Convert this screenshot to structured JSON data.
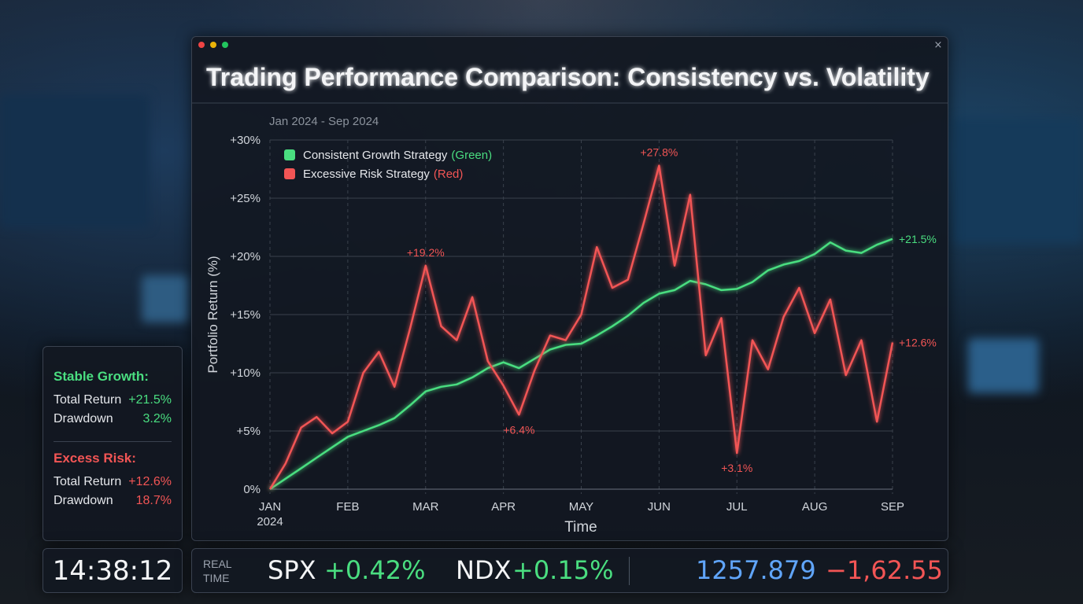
{
  "chart_data": {
    "type": "line",
    "title": "Trading Performance Comparison: Consistency vs. Volatility",
    "subtitle": "Jan 2024 - Sep 2024",
    "y_label": "Portfolio Return (%)",
    "x_label": "Time",
    "xlim": [
      0,
      8
    ],
    "xticks": [
      {
        "value": 0,
        "label": "JAN 2024"
      },
      {
        "value": 1,
        "label": "FEB"
      },
      {
        "value": 2,
        "label": "MAR"
      },
      {
        "value": 3,
        "label": "APR"
      },
      {
        "value": 4,
        "label": "MAY"
      },
      {
        "value": 5,
        "label": "JUN"
      },
      {
        "value": 6,
        "label": "JUL"
      },
      {
        "value": 7,
        "label": "AUG"
      },
      {
        "value": 8,
        "label": "SEP"
      }
    ],
    "ylim": [
      0,
      30
    ],
    "yticks": [
      {
        "value": 0,
        "label": "0%"
      },
      {
        "value": 5,
        "label": "+5%"
      },
      {
        "value": 10,
        "label": "+10%"
      },
      {
        "value": 15,
        "label": "+15%"
      },
      {
        "value": 20,
        "label": "+20%"
      },
      {
        "value": 25,
        "label": "+25%"
      },
      {
        "value": 30,
        "label": "+30%"
      }
    ],
    "grid": true,
    "legend": "upper left",
    "x": [
      0,
      0.2,
      0.4,
      0.6,
      0.8,
      1,
      1.2,
      1.4,
      1.6,
      1.8,
      2,
      2.2,
      2.4,
      2.6,
      2.8,
      3,
      3.2,
      3.4,
      3.6,
      3.8,
      4,
      4.2,
      4.4,
      4.6,
      4.8,
      5,
      5.2,
      5.4,
      5.6,
      5.8,
      6,
      6.2,
      6.4,
      6.6,
      6.8,
      7,
      7.2,
      7.4,
      7.6,
      7.8,
      8
    ],
    "series": [
      {
        "name": "Consistent Growth Strategy",
        "tag": "(Green)",
        "color": "#4ade80",
        "values": [
          0,
          0.9,
          1.8,
          2.7,
          3.6,
          4.5,
          5.0,
          5.5,
          6.1,
          7.2,
          8.4,
          8.8,
          9.0,
          9.6,
          10.4,
          10.9,
          10.4,
          11.2,
          12.0,
          12.4,
          12.5,
          13.2,
          14.0,
          14.9,
          16.0,
          16.8,
          17.1,
          17.9,
          17.6,
          17.1,
          17.2,
          17.8,
          18.8,
          19.3,
          19.6,
          20.2,
          21.2,
          20.5,
          20.3,
          21.0,
          21.5
        ],
        "value_labels": [
          null,
          null,
          null,
          null,
          null,
          null,
          null,
          null,
          null,
          null,
          null,
          null,
          null,
          null,
          null,
          null,
          null,
          null,
          null,
          null,
          null,
          null,
          null,
          null,
          null,
          null,
          null,
          null,
          null,
          null,
          null,
          null,
          null,
          null,
          null,
          null,
          null,
          null,
          null,
          null,
          "+21.5%"
        ]
      },
      {
        "name": "Excessive Risk Strategy",
        "tag": "(Red)",
        "color": "#f25555",
        "values": [
          0,
          2.2,
          5.3,
          6.2,
          4.8,
          5.8,
          10.0,
          11.8,
          8.8,
          13.8,
          19.2,
          14.0,
          12.8,
          16.5,
          11.0,
          8.9,
          6.4,
          10.2,
          13.2,
          12.8,
          15.0,
          20.8,
          17.3,
          18.0,
          22.8,
          27.8,
          19.2,
          25.3,
          11.5,
          14.7,
          3.1,
          12.8,
          10.3,
          14.8,
          17.3,
          13.4,
          16.3,
          9.8,
          12.8,
          5.8,
          12.6
        ],
        "value_labels": [
          null,
          null,
          null,
          null,
          null,
          null,
          null,
          null,
          null,
          null,
          "+19.2%",
          null,
          null,
          null,
          null,
          null,
          "+6.4%",
          null,
          null,
          null,
          null,
          null,
          null,
          null,
          null,
          "+27.8%",
          null,
          null,
          null,
          null,
          "+3.1%",
          null,
          null,
          null,
          null,
          null,
          null,
          null,
          null,
          null,
          "+12.6%"
        ]
      }
    ]
  },
  "stats": [
    {
      "title": "Stable Growth:",
      "color": "#4ade80",
      "rows": [
        {
          "label": "Total Return",
          "value": "+21.5%"
        },
        {
          "label": "Drawdown",
          "value": "3.2%"
        }
      ]
    },
    {
      "title": "Excess Risk:",
      "color": "#f25555",
      "rows": [
        {
          "label": "Total Return",
          "value": "+12.6%"
        },
        {
          "label": "Drawdown",
          "value": "18.7%"
        }
      ]
    }
  ],
  "clock": "14:38:12",
  "ticker": {
    "label": "REAL TIME",
    "items": [
      {
        "symbol": "SPX",
        "change": "+0.42%"
      },
      {
        "symbol": "NDX",
        "change": "+0.15%"
      }
    ],
    "index": "1257.879",
    "delta": "−1,62.55"
  }
}
